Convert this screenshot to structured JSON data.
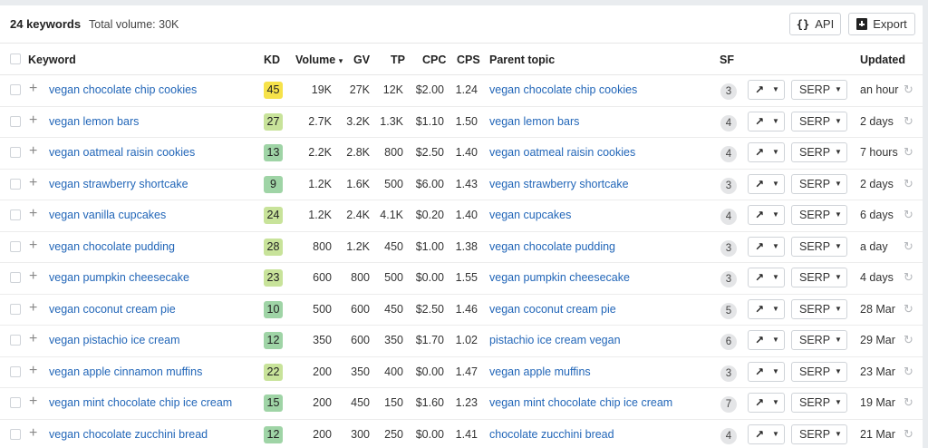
{
  "summary": {
    "keyword_count": "24 keywords",
    "total_volume": "Total volume: 30K",
    "api_label": "API",
    "export_label": "Export"
  },
  "columns": {
    "keyword": "Keyword",
    "kd": "KD",
    "volume": "Volume",
    "volume_sort": "▾",
    "gv": "GV",
    "tp": "TP",
    "cpc": "CPC",
    "cps": "CPS",
    "parent_topic": "Parent topic",
    "sf": "SF",
    "updated": "Updated"
  },
  "kd_colors": {
    "yellow": "#f6e24a",
    "light_green": "#c8e39a",
    "green": "#9fd4a6"
  },
  "serp_label": "SERP",
  "rows": [
    {
      "keyword": "vegan chocolate chip cookies",
      "kd": "45",
      "kd_color": "#f6e24a",
      "volume": "19K",
      "gv": "27K",
      "tp": "12K",
      "cpc": "$2.00",
      "cps": "1.24",
      "parent_topic": "vegan chocolate chip cookies",
      "sf": "3",
      "updated": "an hour"
    },
    {
      "keyword": "vegan lemon bars",
      "kd": "27",
      "kd_color": "#c8e39a",
      "volume": "2.7K",
      "gv": "3.2K",
      "tp": "1.3K",
      "cpc": "$1.10",
      "cps": "1.50",
      "parent_topic": "vegan lemon bars",
      "sf": "4",
      "updated": "2 days"
    },
    {
      "keyword": "vegan oatmeal raisin cookies",
      "kd": "13",
      "kd_color": "#9fd4a6",
      "volume": "2.2K",
      "gv": "2.8K",
      "tp": "800",
      "cpc": "$2.50",
      "cps": "1.40",
      "parent_topic": "vegan oatmeal raisin cookies",
      "sf": "4",
      "updated": "7 hours"
    },
    {
      "keyword": "vegan strawberry shortcake",
      "kd": "9",
      "kd_color": "#9fd4a6",
      "volume": "1.2K",
      "gv": "1.6K",
      "tp": "500",
      "cpc": "$6.00",
      "cps": "1.43",
      "parent_topic": "vegan strawberry shortcake",
      "sf": "3",
      "updated": "2 days"
    },
    {
      "keyword": "vegan vanilla cupcakes",
      "kd": "24",
      "kd_color": "#c8e39a",
      "volume": "1.2K",
      "gv": "2.4K",
      "tp": "4.1K",
      "cpc": "$0.20",
      "cps": "1.40",
      "parent_topic": "vegan cupcakes",
      "sf": "4",
      "updated": "6 days"
    },
    {
      "keyword": "vegan chocolate pudding",
      "kd": "28",
      "kd_color": "#c8e39a",
      "volume": "800",
      "gv": "1.2K",
      "tp": "450",
      "cpc": "$1.00",
      "cps": "1.38",
      "parent_topic": "vegan chocolate pudding",
      "sf": "3",
      "updated": "a day"
    },
    {
      "keyword": "vegan pumpkin cheesecake",
      "kd": "23",
      "kd_color": "#c8e39a",
      "volume": "600",
      "gv": "800",
      "tp": "500",
      "cpc": "$0.00",
      "cps": "1.55",
      "parent_topic": "vegan pumpkin cheesecake",
      "sf": "3",
      "updated": "4 days"
    },
    {
      "keyword": "vegan coconut cream pie",
      "kd": "10",
      "kd_color": "#9fd4a6",
      "volume": "500",
      "gv": "600",
      "tp": "450",
      "cpc": "$2.50",
      "cps": "1.46",
      "parent_topic": "vegan coconut cream pie",
      "sf": "5",
      "updated": "28 Mar"
    },
    {
      "keyword": "vegan pistachio ice cream",
      "kd": "12",
      "kd_color": "#9fd4a6",
      "volume": "350",
      "gv": "600",
      "tp": "350",
      "cpc": "$1.70",
      "cps": "1.02",
      "parent_topic": "pistachio ice cream vegan",
      "sf": "6",
      "updated": "29 Mar"
    },
    {
      "keyword": "vegan apple cinnamon muffins",
      "kd": "22",
      "kd_color": "#c8e39a",
      "volume": "200",
      "gv": "350",
      "tp": "400",
      "cpc": "$0.00",
      "cps": "1.47",
      "parent_topic": "vegan apple muffins",
      "sf": "3",
      "updated": "23 Mar"
    },
    {
      "keyword": "vegan mint chocolate chip ice cream",
      "kd": "15",
      "kd_color": "#9fd4a6",
      "volume": "200",
      "gv": "450",
      "tp": "150",
      "cpc": "$1.60",
      "cps": "1.23",
      "parent_topic": "vegan mint chocolate chip ice cream",
      "sf": "7",
      "updated": "19 Mar"
    },
    {
      "keyword": "vegan chocolate zucchini bread",
      "kd": "12",
      "kd_color": "#9fd4a6",
      "volume": "200",
      "gv": "300",
      "tp": "250",
      "cpc": "$0.00",
      "cps": "1.41",
      "parent_topic": "chocolate zucchini bread",
      "sf": "4",
      "updated": "21 Mar"
    }
  ]
}
